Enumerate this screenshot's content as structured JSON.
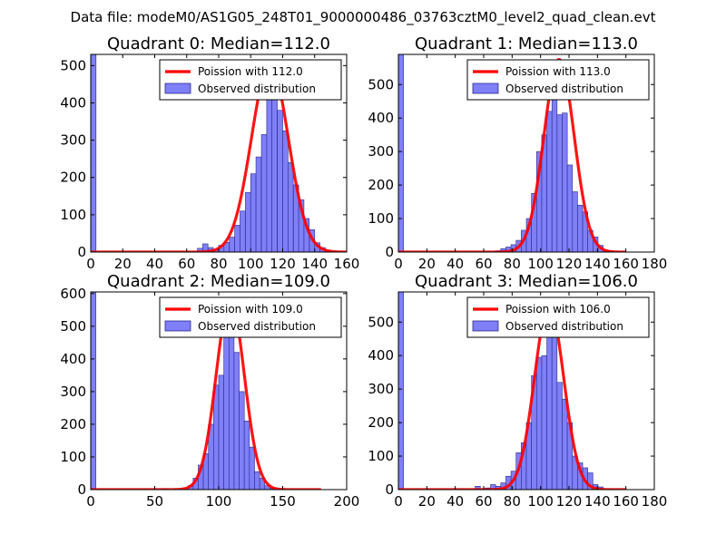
{
  "figure": {
    "suptitle": "Data file: modeM0/AS1G05_248T01_9000000486_03763cztM0_level2_quad_clean.evt"
  },
  "chart_data": [
    {
      "type": "bar",
      "title": "Quadrant 0: Median=112.0",
      "xlim": [
        0,
        160
      ],
      "ylim": [
        0,
        530
      ],
      "xticks": [
        0,
        20,
        40,
        60,
        80,
        100,
        120,
        140,
        160
      ],
      "yticks": [
        0,
        100,
        200,
        300,
        400,
        500
      ],
      "median": 112.0,
      "bin_width": 3.3,
      "hist_x": [
        0,
        66.7,
        70,
        73.3,
        76.7,
        80,
        83.3,
        86.7,
        90,
        93.3,
        96.7,
        100,
        103.3,
        106.7,
        110,
        113.3,
        116.7,
        120,
        123.3,
        126.7,
        130,
        133.3,
        136.7,
        140,
        143.3,
        146.7,
        150
      ],
      "hist_y": [
        530,
        10,
        22,
        12,
        6,
        18,
        26,
        40,
        72,
        110,
        160,
        210,
        255,
        315,
        415,
        440,
        380,
        325,
        240,
        180,
        140,
        90,
        60,
        25,
        12,
        5,
        2
      ],
      "curve_peak": 505,
      "curve_sigma": 11.5,
      "curve_xmax": 160,
      "legend": [
        "Poission with 112.0",
        "Observed distribution"
      ],
      "legend_loc": "top-right"
    },
    {
      "type": "bar",
      "title": "Quadrant 1: Median=113.0",
      "xlim": [
        0,
        180
      ],
      "ylim": [
        0,
        590
      ],
      "xticks": [
        0,
        20,
        40,
        60,
        80,
        100,
        120,
        140,
        160,
        180
      ],
      "yticks": [
        0,
        100,
        200,
        300,
        400,
        500
      ],
      "median": 113.0,
      "bin_width": 3.6,
      "hist_x": [
        0,
        68.4,
        72,
        75.6,
        79.2,
        82.8,
        86.4,
        90,
        93.6,
        97.2,
        100.8,
        104.4,
        108,
        111.6,
        115.2,
        118.8,
        122.4,
        126,
        129.6,
        133.2,
        136.8,
        140.4,
        144,
        147.6
      ],
      "hist_y": [
        590,
        4,
        10,
        15,
        22,
        35,
        65,
        100,
        175,
        300,
        350,
        420,
        520,
        410,
        415,
        260,
        180,
        140,
        120,
        65,
        45,
        20,
        6,
        3
      ],
      "curve_peak": 575,
      "curve_sigma": 10.6,
      "curve_xmax": 160,
      "legend": [
        "Poission with 113.0",
        "Observed distribution"
      ],
      "legend_loc": "top-right"
    },
    {
      "type": "bar",
      "title": "Quadrant 2: Median=109.0",
      "xlim": [
        0,
        200
      ],
      "ylim": [
        0,
        605
      ],
      "xticks": [
        0,
        50,
        100,
        150,
        200
      ],
      "yticks": [
        0,
        100,
        200,
        300,
        400,
        500,
        600
      ],
      "median": 109.0,
      "bin_width": 4.0,
      "hist_x": [
        0,
        56,
        72,
        76,
        80,
        84,
        88,
        92,
        96,
        100,
        104,
        108,
        112,
        116,
        120,
        124,
        128,
        132,
        136,
        140
      ],
      "hist_y": [
        605,
        3,
        5,
        12,
        35,
        75,
        110,
        200,
        320,
        350,
        470,
        480,
        420,
        300,
        210,
        130,
        55,
        35,
        12,
        4
      ],
      "curve_peak": 580,
      "curve_sigma": 11.0,
      "curve_xmax": 180,
      "legend": [
        "Poission with 109.0",
        "Observed distribution"
      ],
      "legend_loc": "top-right"
    },
    {
      "type": "bar",
      "title": "Quadrant 3: Median=106.0",
      "xlim": [
        0,
        180
      ],
      "ylim": [
        0,
        590
      ],
      "xticks": [
        0,
        20,
        40,
        60,
        80,
        100,
        120,
        140,
        160,
        180
      ],
      "yticks": [
        0,
        100,
        200,
        300,
        400,
        500
      ],
      "median": 106.0,
      "bin_width": 3.6,
      "hist_x": [
        0,
        54,
        61.2,
        64.8,
        68.4,
        72,
        75.6,
        79.2,
        82.8,
        86.4,
        90,
        93.6,
        97.2,
        100.8,
        104.4,
        108,
        111.6,
        115.2,
        118.8,
        122.4,
        126,
        129.6,
        133.2,
        136.8,
        140.4,
        147.6
      ],
      "hist_y": [
        590,
        10,
        5,
        15,
        10,
        20,
        40,
        55,
        110,
        140,
        200,
        340,
        395,
        400,
        525,
        460,
        320,
        270,
        200,
        100,
        80,
        65,
        50,
        15,
        8,
        2
      ],
      "curve_peak": 550,
      "curve_sigma": 10.3,
      "curve_xmax": 160,
      "legend": [
        "Poission with 106.0",
        "Observed distribution"
      ],
      "legend_loc": "top-right"
    }
  ]
}
